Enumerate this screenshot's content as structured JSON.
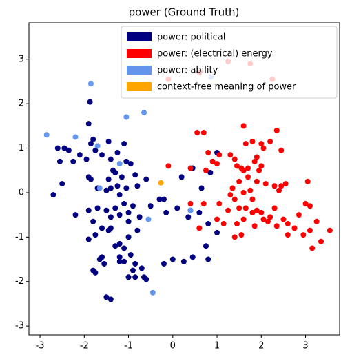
{
  "chart_data": {
    "type": "scatter",
    "title": "power (Ground Truth)",
    "xlim": [
      -3.25,
      3.77
    ],
    "ylim": [
      -3.2,
      3.82
    ],
    "xticks": [
      -3,
      -2,
      -1,
      0,
      1,
      2,
      3
    ],
    "yticks": [
      -3,
      -2,
      -1,
      0,
      1,
      2,
      3
    ],
    "legend": "upper right",
    "series": [
      {
        "name": "power: political",
        "color": "#000080",
        "x": [
          -1.9,
          -1.87,
          -2.6,
          -2.45,
          -2.35,
          -2.1,
          -2.55,
          -2.25,
          -1.95,
          -1.85,
          -1.8,
          -1.75,
          -1.6,
          -1.45,
          -1.4,
          -1.25,
          -1.1,
          -1.05,
          -0.95,
          -1.35,
          -1.3,
          -1.15,
          -0.85,
          -0.6,
          -0.8,
          -1.05,
          -1.25,
          -1.4,
          -1.7,
          -1.9,
          -1.85,
          -2.7,
          -2.5,
          -2.2,
          -1.9,
          -1.7,
          -1.5,
          -1.3,
          -1.1,
          -0.9,
          -1.0,
          -1.2,
          -1.4,
          -1.8,
          -1.6,
          -1.4,
          -1.0,
          -0.75,
          -0.8,
          -1.0,
          -1.2,
          -1.45,
          -1.75,
          -1.9,
          -1.3,
          -1.1,
          -0.95,
          -1.2,
          -1.6,
          -1.65,
          -1.1,
          -1.2,
          -0.85,
          -0.7,
          -0.9,
          -1.55,
          -1.8,
          -1.75,
          -1.0,
          -0.85,
          -0.6,
          -0.65,
          -1.5,
          -1.4,
          -0.2,
          0.0,
          0.25,
          0.45,
          0.8,
          0.75,
          1.0,
          0.8,
          0.6,
          0.4,
          0.35,
          0.1,
          -0.15,
          0.2,
          0.45,
          0.65,
          0.85,
          1.0,
          -0.2,
          -0.5,
          -1.45,
          -1.2,
          -1.5,
          -0.3
        ],
        "values": [
          1.55,
          2.04,
          1.0,
          1.0,
          0.95,
          0.85,
          0.7,
          0.7,
          0.75,
          1.1,
          1.2,
          0.95,
          0.85,
          1.15,
          0.75,
          0.9,
          1.1,
          0.7,
          0.65,
          0.5,
          0.45,
          0.35,
          0.4,
          0.3,
          0.15,
          0.1,
          0.15,
          0.1,
          0.1,
          0.35,
          0.3,
          -0.05,
          0.2,
          -0.5,
          -0.4,
          -0.35,
          -0.4,
          -0.35,
          -0.25,
          -0.3,
          -0.45,
          -0.5,
          -0.55,
          -0.65,
          -0.8,
          -0.8,
          -0.65,
          -0.55,
          -0.85,
          -1.0,
          -1.15,
          -0.85,
          -0.95,
          -1.05,
          -1.2,
          -1.25,
          -1.4,
          -1.45,
          -1.45,
          -1.5,
          -1.55,
          -1.55,
          -1.6,
          -1.7,
          -1.75,
          -1.6,
          -1.75,
          -1.8,
          -1.9,
          -1.9,
          -1.95,
          -1.9,
          -2.35,
          -2.4,
          -1.6,
          -1.5,
          -1.55,
          -1.45,
          -1.5,
          -1.2,
          -0.9,
          -0.7,
          -0.45,
          -0.4,
          -0.55,
          -0.35,
          -0.45,
          0.35,
          0.55,
          0.1,
          0.45,
          0.9,
          -0.15,
          -0.3,
          0.3,
          -0.05,
          0.05,
          -0.15
        ]
      },
      {
        "name": "power: (electrical) energy",
        "color": "#ff0000",
        "x": [
          0.55,
          0.7,
          0.8,
          0.9,
          1.0,
          1.05,
          0.75,
          0.4,
          -0.1,
          0.4,
          0.7,
          1.05,
          0.6,
          1.3,
          1.4,
          1.45,
          1.6,
          1.65,
          1.8,
          1.9,
          2.0,
          2.05,
          2.2,
          2.35,
          2.45,
          1.55,
          1.6,
          1.7,
          1.85,
          1.95,
          2.0,
          1.7,
          1.5,
          1.35,
          1.3,
          1.4,
          1.6,
          1.75,
          1.8,
          1.9,
          2.1,
          2.3,
          2.45,
          2.55,
          3.05,
          1.5,
          1.65,
          1.9,
          2.0,
          2.05,
          2.2,
          2.15,
          2.35,
          2.5,
          2.6,
          2.6,
          2.75,
          2.95,
          3.1,
          3.25,
          3.55,
          3.35,
          3.15,
          2.85,
          3.0,
          3.1,
          1.45,
          1.6,
          1.85,
          1.4,
          1.55,
          1.8,
          2.3,
          1.25,
          1.15,
          1.0,
          2.4,
          -0.1,
          0.6,
          1.25,
          1.75,
          2.25
        ],
        "values": [
          1.35,
          1.35,
          0.9,
          0.7,
          0.65,
          0.85,
          0.5,
          0.55,
          0.6,
          -0.25,
          -0.25,
          -0.25,
          -0.8,
          0.85,
          0.75,
          0.6,
          1.5,
          1.1,
          1.15,
          0.8,
          1.1,
          1.0,
          1.15,
          1.4,
          0.95,
          0.55,
          0.5,
          0.55,
          0.7,
          0.5,
          0.6,
          0.35,
          0.25,
          0.1,
          -0.05,
          -0.15,
          0.0,
          0.05,
          -0.15,
          0.25,
          0.2,
          0.15,
          0.15,
          0.2,
          0.25,
          -0.35,
          -0.35,
          -0.4,
          -0.45,
          -0.6,
          -0.55,
          -0.65,
          -0.75,
          -0.6,
          -0.7,
          -0.95,
          -0.8,
          -0.95,
          -0.85,
          -0.65,
          -0.85,
          -1.1,
          -1.25,
          -0.5,
          -0.25,
          -0.3,
          -0.7,
          -0.6,
          -0.75,
          -1.0,
          -0.95,
          -0.45,
          -0.35,
          -0.4,
          -0.7,
          -0.6,
          0.05,
          2.55,
          2.7,
          2.95,
          2.9,
          2.55
        ]
      },
      {
        "name": "power: ability",
        "color": "#6495ed",
        "x": [
          -2.85,
          -1.85,
          -1.05,
          -0.65,
          -2.2,
          -1.7,
          -1.2,
          -1.65,
          -0.55,
          -0.45,
          0.4,
          0.86
        ],
        "values": [
          1.3,
          2.45,
          1.7,
          1.8,
          1.25,
          1.05,
          0.65,
          0.1,
          -0.6,
          -2.25,
          -0.4,
          2.6
        ]
      },
      {
        "name": "context-free meaning of power",
        "color": "#ffa500",
        "x": [
          -0.27
        ],
        "values": [
          0.22
        ]
      }
    ]
  }
}
